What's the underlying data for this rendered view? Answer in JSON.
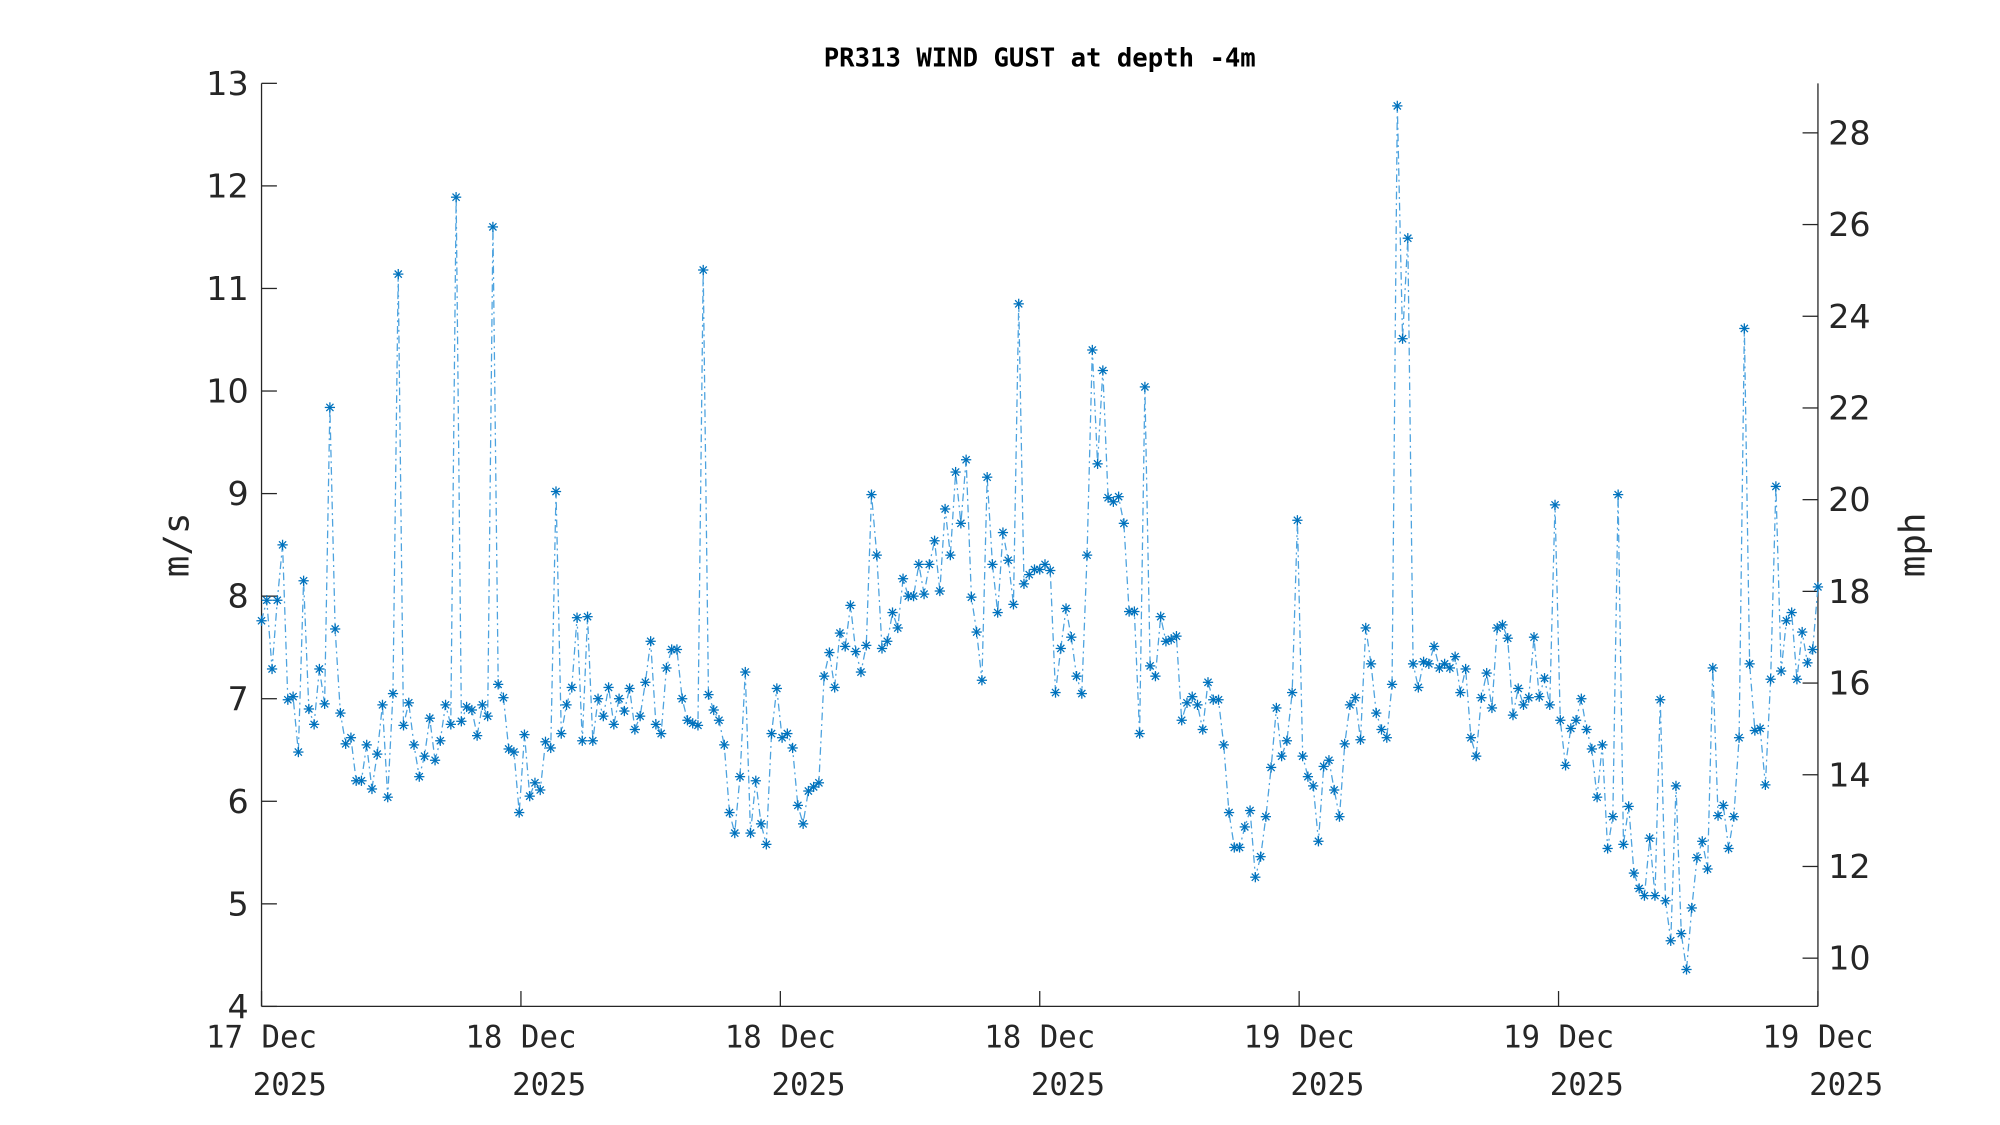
{
  "chart_data": {
    "type": "line",
    "title": "PR313 WIND GUST at depth -4m",
    "ylabel": "m/s",
    "ylabel_right": "mph",
    "ylim": [
      4,
      13
    ],
    "ylim_right_mph": [
      8.948,
      29.08
    ],
    "yticks": [
      "4",
      "5",
      "6",
      "7",
      "8",
      "9",
      "10",
      "11",
      "12",
      "13"
    ],
    "yticks_right": [
      "10",
      "12",
      "14",
      "16",
      "18",
      "20",
      "22",
      "24",
      "26",
      "28"
    ],
    "x_range_hours": [
      0,
      48
    ],
    "xticks": [
      {
        "line1": "17 Dec",
        "line2": "2025"
      },
      {
        "line1": "18 Dec",
        "line2": "2025"
      },
      {
        "line1": "18 Dec",
        "line2": "2025"
      },
      {
        "line1": "18 Dec",
        "line2": "2025"
      },
      {
        "line1": "19 Dec",
        "line2": "2025"
      },
      {
        "line1": "19 Dec",
        "line2": "2025"
      },
      {
        "line1": "19 Dec",
        "line2": "2025"
      }
    ],
    "grid": false,
    "series": [
      {
        "name": "Wind gust",
        "color": "#0072BD",
        "line_style": "dash-dot",
        "marker": "asterisk",
        "values": [
          7.76,
          7.96,
          7.29,
          7.96,
          8.5,
          6.99,
          7.02,
          6.48,
          8.15,
          6.9,
          6.75,
          7.29,
          6.95,
          9.84,
          7.68,
          6.86,
          6.56,
          6.62,
          6.2,
          6.2,
          6.55,
          6.12,
          6.46,
          6.94,
          6.04,
          7.05,
          11.14,
          6.74,
          6.96,
          6.55,
          6.24,
          6.44,
          6.81,
          6.4,
          6.59,
          6.94,
          6.75,
          11.89,
          6.78,
          6.92,
          6.89,
          6.64,
          6.94,
          6.83,
          11.6,
          7.14,
          7.01,
          6.51,
          6.48,
          5.89,
          6.65,
          6.05,
          6.18,
          6.11,
          6.58,
          6.52,
          9.02,
          6.66,
          6.94,
          7.11,
          7.79,
          6.59,
          7.8,
          6.59,
          7.0,
          6.83,
          7.11,
          6.75,
          7.0,
          6.88,
          7.1,
          6.7,
          6.83,
          7.16,
          7.56,
          6.75,
          6.66,
          7.3,
          7.48,
          7.48,
          7.0,
          6.79,
          6.76,
          6.74,
          11.18,
          7.04,
          6.89,
          6.79,
          6.55,
          5.89,
          5.69,
          6.24,
          7.26,
          5.69,
          6.2,
          5.78,
          5.58,
          6.66,
          7.1,
          6.62,
          6.66,
          6.52,
          5.96,
          5.78,
          6.1,
          6.14,
          6.18,
          7.22,
          7.45,
          7.11,
          7.64,
          7.51,
          7.91,
          7.46,
          7.26,
          7.52,
          8.99,
          8.4,
          7.49,
          7.56,
          7.84,
          7.69,
          8.17,
          8.0,
          8.0,
          8.31,
          8.02,
          8.31,
          8.54,
          8.05,
          8.85,
          8.4,
          9.21,
          8.71,
          9.33,
          7.99,
          7.65,
          7.18,
          9.16,
          8.31,
          7.84,
          8.62,
          8.35,
          7.92,
          10.85,
          8.12,
          8.21,
          8.26,
          8.26,
          8.31,
          8.25,
          7.06,
          7.49,
          7.88,
          7.6,
          7.22,
          7.05,
          8.4,
          10.4,
          9.29,
          10.2,
          8.96,
          8.92,
          8.97,
          8.71,
          7.85,
          7.85,
          6.66,
          10.04,
          7.32,
          7.22,
          7.8,
          7.56,
          7.58,
          7.61,
          6.79,
          6.96,
          7.02,
          6.94,
          6.7,
          7.16,
          6.99,
          6.99,
          6.55,
          5.89,
          5.55,
          5.55,
          5.75,
          5.91,
          5.26,
          5.46,
          5.85,
          6.33,
          6.91,
          6.44,
          6.59,
          7.06,
          8.74,
          6.44,
          6.24,
          6.15,
          5.61,
          6.34,
          6.4,
          6.11,
          5.85,
          6.56,
          6.94,
          7.01,
          6.6,
          7.69,
          7.34,
          6.86,
          6.7,
          6.62,
          7.14,
          12.78,
          10.51,
          11.49,
          7.34,
          7.11,
          7.36,
          7.34,
          7.51,
          7.3,
          7.34,
          7.3,
          7.41,
          7.06,
          7.29,
          6.62,
          6.44,
          7.01,
          7.25,
          6.91,
          7.69,
          7.72,
          7.59,
          6.84,
          7.1,
          6.94,
          7.01,
          7.6,
          7.02,
          7.2,
          6.94,
          8.89,
          6.79,
          6.35,
          6.71,
          6.79,
          7.0,
          6.7,
          6.51,
          6.04,
          6.55,
          5.54,
          5.85,
          8.99,
          5.58,
          5.95,
          5.3,
          5.15,
          5.08,
          5.64,
          5.08,
          6.99,
          5.03,
          4.64,
          6.15,
          4.71,
          4.36,
          4.96,
          5.45,
          5.61,
          5.34,
          7.3,
          5.86,
          5.96,
          5.54,
          5.85,
          6.62,
          10.61,
          7.34,
          6.69,
          6.71,
          6.16,
          7.19,
          9.07,
          7.27,
          7.76,
          7.84,
          7.19,
          7.65,
          7.35,
          7.48,
          8.09
        ]
      }
    ]
  }
}
